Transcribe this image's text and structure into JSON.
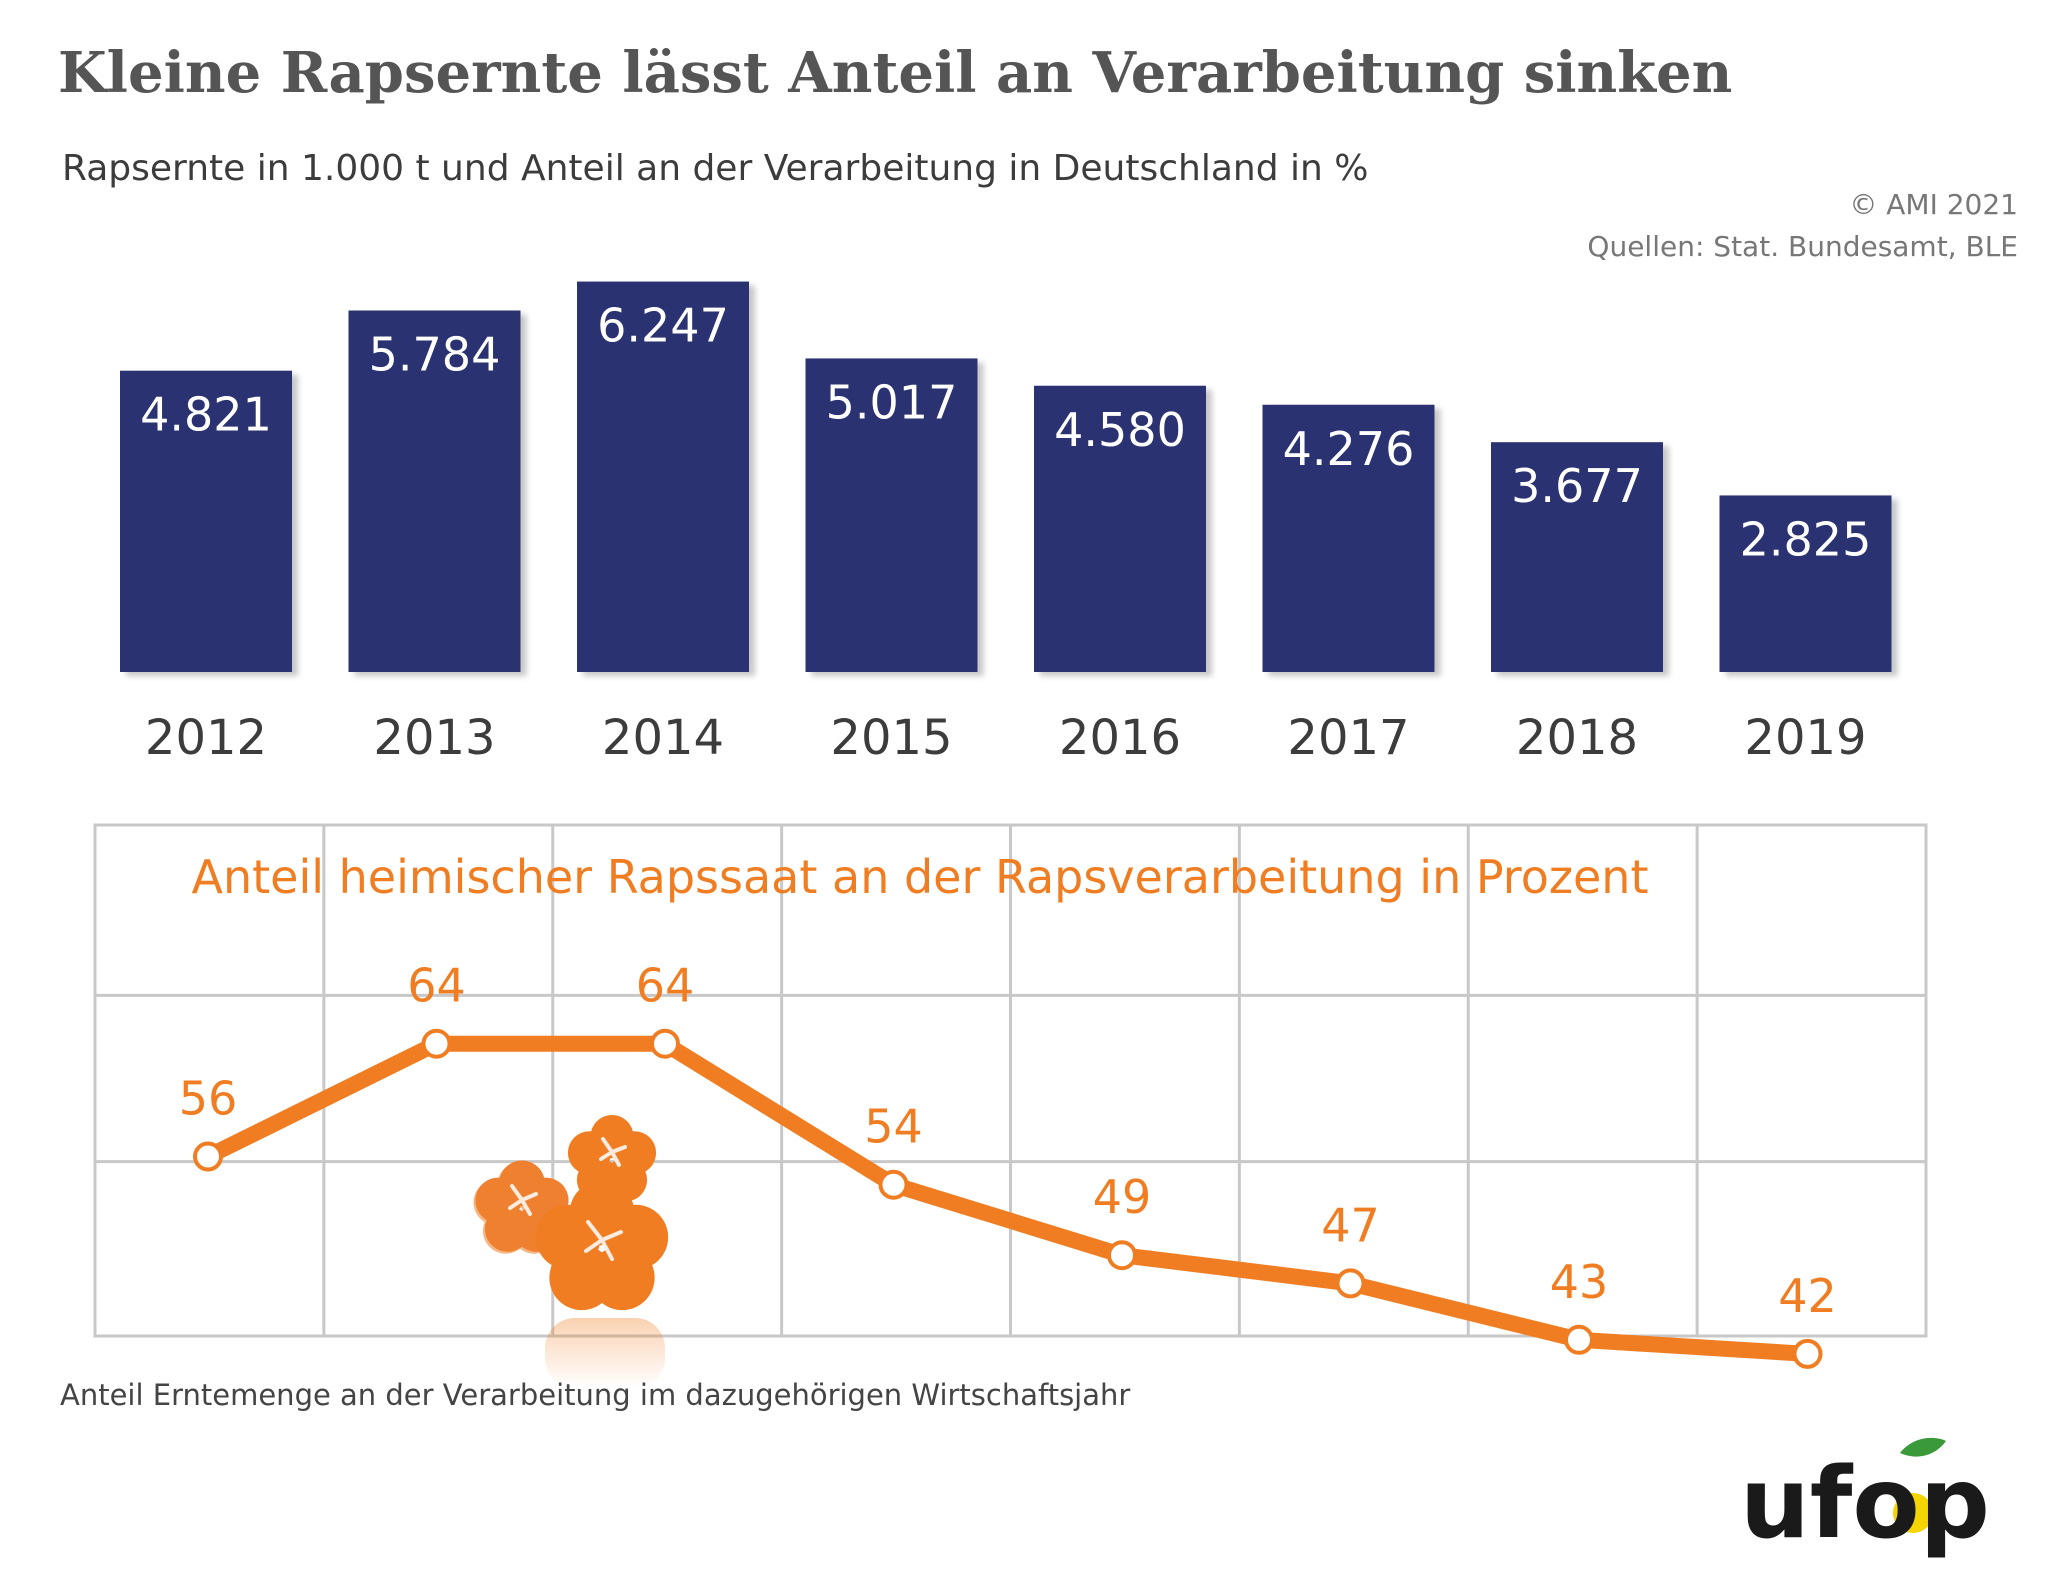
{
  "title": "Kleine Rapsernte lässt Anteil an Verarbeitung sinken",
  "subtitle": "Rapsernte in 1.000 t und Anteil an der Verarbeitung in Deutschland in %",
  "copyright": "© AMI 2021",
  "sources": "Quellen: Stat. Bundesamt, BLE",
  "footnote": "Anteil Erntemenge an der Verarbeitung im dazugehörigen Wirtschaftsjahr",
  "logo_text": "ufop",
  "colors": {
    "bar": "#2b3171",
    "line": "#f07d22",
    "grid": "#c8c8c8",
    "text_dark": "#3c3c3c"
  },
  "chart_data": [
    {
      "type": "bar",
      "categories": [
        "2012",
        "2013",
        "2014",
        "2015",
        "2016",
        "2017",
        "2018",
        "2019"
      ],
      "values": [
        4821,
        5784,
        6247,
        5017,
        4580,
        4276,
        3677,
        2825
      ],
      "value_labels": [
        "4.821",
        "5.784",
        "6.247",
        "5.017",
        "4.580",
        "4.276",
        "3.677",
        "2.825"
      ]
    },
    {
      "type": "line",
      "title": "Anteil heimischer Rapssaat an der Rapsverarbeitung in Prozent",
      "categories": [
        "2012",
        "2013",
        "2014",
        "2015",
        "2016",
        "2017",
        "2018",
        "2019"
      ],
      "values": [
        56,
        64,
        64,
        54,
        49,
        47,
        43,
        42
      ],
      "ylim": [
        40,
        70
      ],
      "grid": true
    }
  ]
}
